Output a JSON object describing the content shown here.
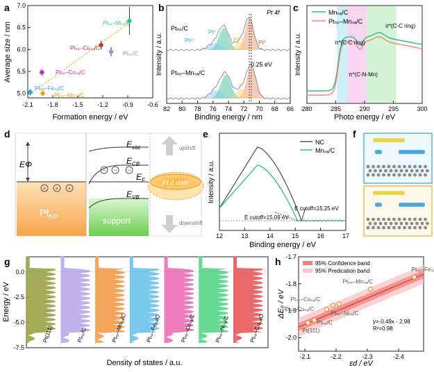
{
  "panels": {
    "a": "a",
    "b": "b",
    "c": "c",
    "d": "d",
    "e": "e",
    "f": "f",
    "g": "g",
    "h": "h"
  },
  "colors": {
    "green": "#2ecc71",
    "red": "#c0392b",
    "purple": "#9b8fe0",
    "magenta": "#c026d3",
    "blue": "#29a8e0",
    "orange": "#f39c12",
    "teal": "#2fb894",
    "salmon": "#f08a6a"
  },
  "panel_a": {
    "ylabel": "Average size / nm",
    "xlabel": "Formation energy / eV",
    "labels": [
      "Ptₙₚ–Niₛₐ/C",
      "Ptₙₚ–Cuₛₐ/C",
      "Ptₙₚ/C",
      "Ptₙₚ–Coₛₐ/C",
      "Ptₙₚ–Feₛₐ/C",
      "Ptₙₚ–Mnₛₐ/C"
    ]
  },
  "panel_b": {
    "title": "Pt 4f",
    "ylabel": "Intensity / a.u.",
    "xlabel": "Binding energy / nm",
    "label_top": "Ptₙₚ/C",
    "label_bottom": "Ptₙₚ–Mnₛₐ/C",
    "shift": "0.25 eV",
    "pt0": "Pt⁰",
    "pt2": "Pt²⁺"
  },
  "panel_c": {
    "ylabel": "Intensity / a.u.",
    "xlabel": "Photo energy / eV",
    "legend": [
      "Mnₛₐ/C",
      "Ptₙₚ–Mnₛₐ/C"
    ],
    "ann1": "σ*(C-C ring)",
    "ann2": "π*(C-C ring)",
    "ann3": "π*(C-N-Mn)"
  },
  "panel_d": {
    "ephi": "EΦ",
    "evac": "E",
    "ecb": "E",
    "ef": "E",
    "evb": "E",
    "vac_sub": "vac",
    "cb_sub": "CB",
    "f_sub": "F",
    "vb_sub": "VB",
    "pt_label": "Pt",
    "pt_sub": "NP",
    "support": "support",
    "d_state": "Pt d state",
    "upshift": "upshift",
    "downshift": "downshift"
  },
  "panel_e": {
    "ylabel": "Intensity / a.u.",
    "xlabel": "Binding energy / eV",
    "legend": [
      "NC",
      "Mnₛₐ/C"
    ],
    "cut1": "Eₓ=15.09 eV",
    "cut2": "Eₓ=15.25 eV",
    "cut1_full": "E cutoff=15.09 eV",
    "cut2_full": "E cutoff=15.25 eV"
  },
  "panel_g": {
    "ylabel": "Energy / eV",
    "xlabel": "Density of states / a.u.",
    "labels": [
      "Pt(111)",
      "Ptₙₚ/C",
      "Ptₙₚ–Mnₛₐ/C",
      "Ptₙₚ–Feₛₐ/C",
      "Ptₙₚ–Coₛₐ/C",
      "Ptₙₚ–Niₛₐ/C",
      "Ptₙₚ–Cuₛₐ/C"
    ]
  },
  "panel_h": {
    "ylabel": "ΔEₒ / eV",
    "xlabel": "εd / eV",
    "legend": [
      "95% Confidence band",
      "95% Predication band"
    ],
    "equation": "y=-0.49x - 2.98",
    "r2": "R²=0.98",
    "labels": [
      "Ptₙₚ–Feₛₐ/C",
      "Ptₙₚ–Mnₛₐ/C",
      "Ptₙₚ–Coₛₐ/C",
      "Ptₙₚ–Cuₛₐ/C",
      "Ptₙₚ–Niₛₐ/C",
      "Ptₙₚ/C",
      "Pt(111)"
    ]
  },
  "chart_data": [
    {
      "panel": "a",
      "type": "scatter",
      "title": "",
      "xlabel": "Formation energy / eV",
      "ylabel": "Average size / nm",
      "xlim": [
        -2.1,
        -0.6
      ],
      "ylim": [
        4.9,
        7.0
      ],
      "xticks": [
        -2.1,
        -1.8,
        -1.5,
        -1.2,
        -0.9,
        -0.6
      ],
      "yticks": [
        5.0,
        5.5,
        6.0,
        6.5,
        7.0
      ],
      "points": [
        {
          "name": "PtNP-NiSA/C",
          "x": -0.88,
          "y": 6.65,
          "err": 0.32,
          "color": "#2ecc71"
        },
        {
          "name": "PtNP-CuSA/C",
          "x": -1.22,
          "y": 6.1,
          "err": 0.1,
          "color": "#c0392b"
        },
        {
          "name": "PtNP/C",
          "x": -1.1,
          "y": 5.95,
          "err": 0.1,
          "color": "#9b8fe0"
        },
        {
          "name": "PtNP-CoSA/C",
          "x": -1.93,
          "y": 5.48,
          "err": 0.07,
          "color": "#c026d3"
        },
        {
          "name": "PtNP-FeSA/C",
          "x": -2.07,
          "y": 5.03,
          "err": 0.07,
          "color": "#29a8e0"
        },
        {
          "name": "PtNP-MnSA/C",
          "x": -1.92,
          "y": 5.0,
          "err": 0.05,
          "color": "#f39c12"
        }
      ],
      "trend": [
        [
          -2.1,
          4.95
        ],
        [
          -0.85,
          6.65
        ]
      ]
    },
    {
      "panel": "b",
      "type": "line",
      "title": "Pt 4f",
      "xlabel": "Binding energy / nm",
      "ylabel": "Intensity / a.u.",
      "xlim": [
        82,
        66
      ],
      "xticks": [
        82,
        80,
        78,
        76,
        74,
        72,
        70,
        68,
        66
      ],
      "series": [
        {
          "name": "PtNP/C",
          "peaks": [
            {
              "center": 71.3,
              "label": "Pt0"
            },
            {
              "center": 74.6,
              "label": "Pt0"
            },
            {
              "center": 72.5,
              "label": "Pt2+"
            },
            {
              "center": 75.8,
              "label": "Pt2+"
            }
          ]
        },
        {
          "name": "PtNP-MnSA/C",
          "peaks": [
            {
              "center": 71.05
            },
            {
              "center": 74.35
            },
            {
              "center": 72.3
            },
            {
              "center": 75.6
            }
          ]
        }
      ],
      "annotation": "0.25 eV"
    },
    {
      "panel": "c",
      "type": "line",
      "title": "",
      "xlabel": "Photo energy / eV",
      "ylabel": "Intensity / a.u.",
      "xlim": [
        280,
        300
      ],
      "xticks": [
        280,
        285,
        290,
        295,
        300
      ],
      "series": [
        {
          "name": "MnSA/C",
          "color": "#2fb894"
        },
        {
          "name": "PtNP-MnSA/C",
          "color": "#f08a6a"
        }
      ],
      "bands": [
        [
          285.2,
          287.0
        ],
        [
          287.0,
          290.3
        ],
        [
          290.3,
          295.5
        ]
      ],
      "annotations": [
        "σ*(C-C ring)",
        "π*(C-C ring)",
        "π*(C-N-Mn)"
      ]
    },
    {
      "panel": "e",
      "type": "line",
      "title": "",
      "xlabel": "Binding energy / eV",
      "ylabel": "Intensity / a.u.",
      "xlim": [
        12,
        17
      ],
      "xticks": [
        12,
        13,
        14,
        15,
        16,
        17
      ],
      "series": [
        {
          "name": "NC",
          "color": "#555555",
          "cutoff": 15.25
        },
        {
          "name": "MnSA/C",
          "color": "#2fb894",
          "cutoff": 15.09
        }
      ]
    },
    {
      "panel": "g",
      "type": "area",
      "title": "",
      "xlabel": "Density of states / a.u.",
      "ylabel": "Energy / eV",
      "ylim": [
        -7.5,
        1.5
      ],
      "yticks": [
        0.0,
        -2.5,
        -5.0,
        -7.5
      ],
      "series": [
        {
          "name": "Pt(111)",
          "color": "#9aa34a"
        },
        {
          "name": "PtNP/C",
          "color": "#b9a8e8"
        },
        {
          "name": "PtNP-MnSA/C",
          "color": "#f39c4a"
        },
        {
          "name": "PtNP-FeSA/C",
          "color": "#6cc3ea"
        },
        {
          "name": "PtNP-CoSA/C",
          "color": "#ec6fb6"
        },
        {
          "name": "PtNP-NiSA/C",
          "color": "#55d68a"
        },
        {
          "name": "PtNP-CuSA/C",
          "color": "#e65a5a"
        }
      ]
    },
    {
      "panel": "h",
      "type": "scatter",
      "title": "",
      "xlabel": "εd / eV",
      "ylabel": "ΔEO / eV",
      "xlim": [
        -2.08,
        -2.48
      ],
      "ylim": [
        -2.05,
        -1.7
      ],
      "xticks": [
        -2.1,
        -2.2,
        -2.3,
        -2.4
      ],
      "yticks": [
        -1.7,
        -1.8,
        -1.9,
        -2.0
      ],
      "points": [
        {
          "name": "PtNP-FeSA/C",
          "x": -2.45,
          "y": -1.775
        },
        {
          "name": "PtNP-MnSA/C",
          "x": -2.31,
          "y": -1.82
        },
        {
          "name": "PtNP-CoSA/C",
          "x": -2.21,
          "y": -1.875
        },
        {
          "name": "PtNP-CuSA/C",
          "x": -2.19,
          "y": -1.88
        },
        {
          "name": "PtNP-NiSA/C",
          "x": -2.17,
          "y": -1.895
        },
        {
          "name": "PtNP/C",
          "x": -2.13,
          "y": -1.935
        },
        {
          "name": "Pt(111)",
          "x": -2.11,
          "y": -1.945
        }
      ],
      "fit": {
        "slope": -0.49,
        "intercept": -2.98,
        "r2": 0.98
      }
    }
  ]
}
